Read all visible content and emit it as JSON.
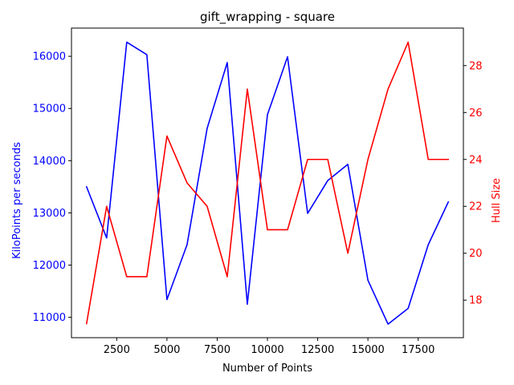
{
  "chart_data": {
    "type": "line",
    "title": "gift_wrapping - square",
    "xlabel": "Number of Points",
    "ylabel_left": "KiloPoints per seconds",
    "ylabel_right": "Hull Size",
    "x": [
      1000,
      2000,
      3000,
      4000,
      5000,
      6000,
      7000,
      8000,
      9000,
      10000,
      11000,
      12000,
      13000,
      14000,
      15000,
      16000,
      17000,
      18000,
      19000
    ],
    "series": [
      {
        "axis": "left",
        "color": "#0000ff",
        "values": [
          13500,
          12520,
          16270,
          16030,
          11340,
          12390,
          14620,
          15880,
          11250,
          14880,
          15990,
          12990,
          13620,
          13930,
          11710,
          10870,
          11170,
          12390,
          13210
        ]
      },
      {
        "axis": "right",
        "color": "#ff0000",
        "values": [
          17,
          22,
          19,
          19,
          25,
          23,
          22,
          19,
          27,
          21,
          21,
          24,
          24,
          20,
          24,
          27,
          29,
          24,
          24
        ]
      }
    ],
    "xlim": [
      250,
      19750
    ],
    "ylim_left": [
      10610,
      16540
    ],
    "ylim_right": [
      16.4,
      29.6
    ],
    "xticks": [
      2500,
      5000,
      7500,
      10000,
      12500,
      15000,
      17500
    ],
    "xtick_labels": [
      "2500",
      "5000",
      "7500",
      "10000",
      "12500",
      "15000",
      "17500"
    ],
    "yticks_left": [
      11000,
      12000,
      13000,
      14000,
      15000,
      16000
    ],
    "ytick_labels_left": [
      "11000",
      "12000",
      "13000",
      "14000",
      "15000",
      "16000"
    ],
    "yticks_right": [
      18,
      20,
      22,
      24,
      26,
      28
    ],
    "ytick_labels_right": [
      "18",
      "20",
      "22",
      "24",
      "26",
      "28"
    ],
    "left_axis_color": "#0000ff",
    "right_axis_color": "#ff0000",
    "grid": false
  }
}
